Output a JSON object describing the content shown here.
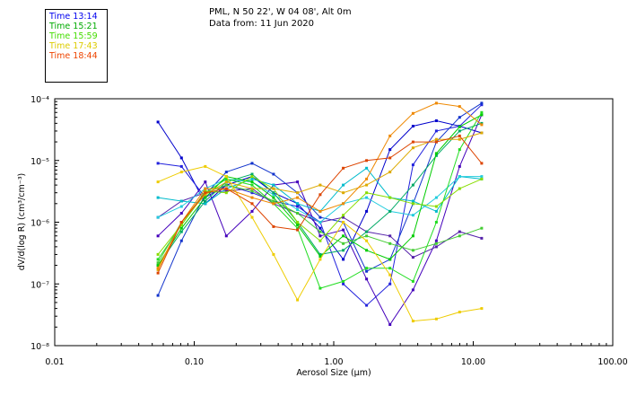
{
  "header": {
    "line1": "PML, N 50 22', W 04 08', Alt 0m",
    "line2": "Data from: 11 Jun 2020"
  },
  "legend": [
    {
      "label": "Time 13:14",
      "color": "#0000ee"
    },
    {
      "label": "Time 15:21",
      "color": "#00aa00"
    },
    {
      "label": "Time 15:59",
      "color": "#44dd00"
    },
    {
      "label": "Time 17:43",
      "color": "#ddcc00"
    },
    {
      "label": "Time 18:44",
      "color": "#ee4400"
    }
  ],
  "chart_data": {
    "type": "line",
    "xscale": "log",
    "yscale": "log",
    "xlim": [
      0.01,
      100
    ],
    "ylim": [
      1e-08,
      0.0001
    ],
    "xlabel": "Aerosol Size (µm)",
    "ylabel": "dV/d(log R) (cm³/cm⁻³)",
    "x_tick_labels": [
      {
        "value": 0.01,
        "label": "0.01"
      },
      {
        "value": 0.1,
        "label": "0.10"
      },
      {
        "value": 1,
        "label": "1.00"
      },
      {
        "value": 10,
        "label": "10.00"
      },
      {
        "value": 100,
        "label": "100.00"
      }
    ],
    "y_tick_labels": [
      {
        "value": 1e-08,
        "label": "10⁻⁸"
      },
      {
        "value": 1e-07,
        "label": "10⁻⁷"
      },
      {
        "value": 1e-06,
        "label": "10⁻⁶"
      },
      {
        "value": 1e-05,
        "label": "10⁻⁵"
      },
      {
        "value": 0.0001,
        "label": "10⁻⁴"
      }
    ],
    "x": [
      0.055,
      0.081,
      0.12,
      0.17,
      0.26,
      0.37,
      0.55,
      0.8,
      1.17,
      1.72,
      2.53,
      3.7,
      5.44,
      7.98,
      11.5
    ],
    "series": [
      {
        "color": "#0000cc",
        "values": [
          4.2e-05,
          1.1e-05,
          2e-06,
          4e-06,
          5.5e-06,
          3e-06,
          2e-06,
          8e-07,
          2.5e-07,
          1.5e-06,
          1.5e-05,
          3.6e-05,
          4.4e-05,
          3.6e-05,
          2.8e-05
        ]
      },
      {
        "color": "#2222dd",
        "values": [
          9e-06,
          8e-06,
          2.5e-06,
          4e-06,
          3e-06,
          2.2e-06,
          1.8e-06,
          1e-06,
          1e-07,
          4.5e-08,
          1e-07,
          8.5e-06,
          3e-05,
          3.6e-05,
          8e-05
        ]
      },
      {
        "color": "#4400bb",
        "values": [
          6e-07,
          1.4e-06,
          4.5e-06,
          6e-07,
          1.5e-06,
          4e-06,
          4.5e-06,
          6e-07,
          7.5e-07,
          1.2e-07,
          2.2e-08,
          8e-08,
          5e-07,
          8e-06,
          5.5e-05
        ]
      },
      {
        "color": "#1133cc",
        "values": [
          6.5e-08,
          5e-07,
          2.8e-06,
          6.5e-06,
          9e-06,
          6e-06,
          3e-06,
          1.2e-06,
          1e-06,
          1.6e-07,
          2.5e-07,
          2e-06,
          2e-05,
          5e-05,
          8.5e-05
        ]
      },
      {
        "color": "#5522aa",
        "values": [
          1.2e-06,
          2.2e-06,
          3e-06,
          3.2e-06,
          3.5e-06,
          2e-06,
          1.4e-06,
          1e-06,
          1.2e-06,
          7e-07,
          6e-07,
          2.7e-07,
          4e-07,
          7e-07,
          5.5e-07
        ]
      },
      {
        "color": "#00bbcc",
        "values": [
          2.5e-06,
          2.2e-06,
          2e-06,
          3.5e-06,
          5e-06,
          4e-06,
          2e-06,
          1.5e-06,
          4e-06,
          7.5e-06,
          2.5e-06,
          2.2e-06,
          1.5e-06,
          5.5e-06,
          5e-06
        ]
      },
      {
        "color": "#22ccdd",
        "values": [
          1.2e-06,
          1.8e-06,
          3.5e-06,
          5e-06,
          4.5e-06,
          2.8e-06,
          1.6e-06,
          1e-06,
          2e-06,
          2.5e-06,
          1.5e-06,
          1.3e-06,
          2.5e-06,
          5.5e-06,
          5.5e-06
        ]
      },
      {
        "color": "#00aa66",
        "values": [
          2e-07,
          7e-07,
          2.2e-06,
          4.5e-06,
          6e-06,
          3e-06,
          1e-06,
          3e-07,
          3.5e-07,
          7e-07,
          1.5e-06,
          4e-06,
          1.2e-05,
          3e-05,
          4e-05
        ]
      },
      {
        "color": "#00cc00",
        "values": [
          2e-07,
          8e-07,
          2.5e-06,
          5.5e-06,
          4.5e-06,
          2.5e-06,
          9e-07,
          2.8e-07,
          6e-07,
          3.5e-07,
          2.5e-07,
          6e-07,
          1.3e-05,
          3.5e-05,
          5.5e-05
        ]
      },
      {
        "color": "#22dd22",
        "values": [
          2.5e-07,
          9e-07,
          3e-06,
          5e-06,
          4e-06,
          2e-06,
          8e-07,
          8.5e-08,
          1.1e-07,
          1.8e-07,
          1.8e-07,
          1.1e-07,
          1e-06,
          1.5e-05,
          6e-05
        ]
      },
      {
        "color": "#44cc33",
        "values": [
          2.2e-07,
          1e-06,
          3e-06,
          4e-06,
          3.2e-06,
          2.2e-06,
          1.4e-06,
          7e-07,
          4.5e-07,
          6e-07,
          4.5e-07,
          3.5e-07,
          4.5e-07,
          6e-07,
          8e-07
        ]
      },
      {
        "color": "#88dd00",
        "values": [
          3e-07,
          9e-07,
          3.2e-06,
          3e-06,
          5.5e-06,
          3.5e-06,
          1e-06,
          5e-07,
          1.3e-06,
          3e-06,
          2.5e-06,
          2e-06,
          1.8e-06,
          3.5e-06,
          5e-06
        ]
      },
      {
        "color": "#eecc00",
        "values": [
          4.5e-06,
          6.5e-06,
          8e-06,
          5.5e-06,
          1.2e-06,
          3e-07,
          5.5e-08,
          2.5e-07,
          1e-06,
          5e-07,
          1.4e-07,
          2.5e-08,
          2.7e-08,
          3.5e-08,
          4e-08
        ]
      },
      {
        "color": "#ddaa00",
        "values": [
          1.7e-07,
          1e-06,
          2.8e-06,
          4.5e-06,
          3.5e-06,
          3.5e-06,
          3e-06,
          4e-06,
          3e-06,
          4e-06,
          6.5e-06,
          1.6e-05,
          2.2e-05,
          2.2e-05,
          2.8e-05
        ]
      },
      {
        "color": "#ee8800",
        "values": [
          1.8e-07,
          1e-06,
          3.5e-06,
          3.5e-06,
          2.5e-06,
          2e-06,
          2.5e-06,
          1.5e-06,
          2e-06,
          5e-06,
          2.5e-05,
          5.8e-05,
          8.5e-05,
          7.5e-05,
          3.8e-05
        ]
      },
      {
        "color": "#dd4400",
        "values": [
          1.5e-07,
          1e-06,
          3e-06,
          3.5e-06,
          2e-06,
          8.5e-07,
          7.5e-07,
          2.8e-06,
          7.5e-06,
          1e-05,
          1.1e-05,
          2e-05,
          2e-05,
          2.5e-05,
          9e-06
        ]
      }
    ]
  }
}
